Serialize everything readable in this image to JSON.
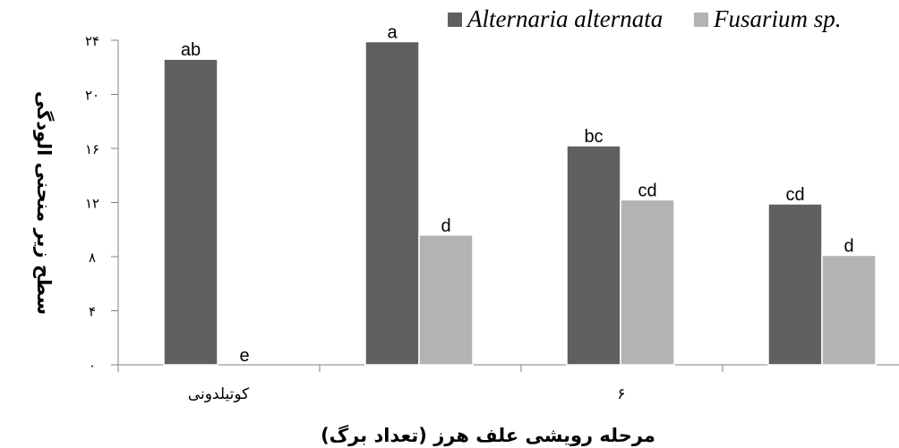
{
  "chart_data": {
    "type": "bar",
    "categories": [
      "کوتیلدونی",
      "",
      "۶",
      ""
    ],
    "series": [
      {
        "name": "Alternaria alternata",
        "color": "#606060",
        "values": [
          22.6,
          23.9,
          16.2,
          11.9
        ],
        "labels": [
          "ab",
          "a",
          "bc",
          "cd"
        ]
      },
      {
        "name": "Fusarium sp.",
        "color": "#b3b3b3",
        "values": [
          0,
          9.6,
          12.2,
          8.1
        ],
        "labels": [
          "e",
          "d",
          "cd",
          "d"
        ]
      }
    ],
    "ylim": [
      0,
      24
    ],
    "yticks": [
      0,
      4,
      8,
      12,
      16,
      20,
      24
    ],
    "ytick_labels": [
      "۰",
      "۴",
      "۸",
      "۱۲",
      "۱۶",
      "۲۰",
      "۲۴"
    ],
    "ylabel": "سطح زیر منحنی الودگی",
    "xlabel": "مرحله رویشی علف هرز (تعداد برگ)",
    "legend_position": "top-right",
    "grid": false
  }
}
